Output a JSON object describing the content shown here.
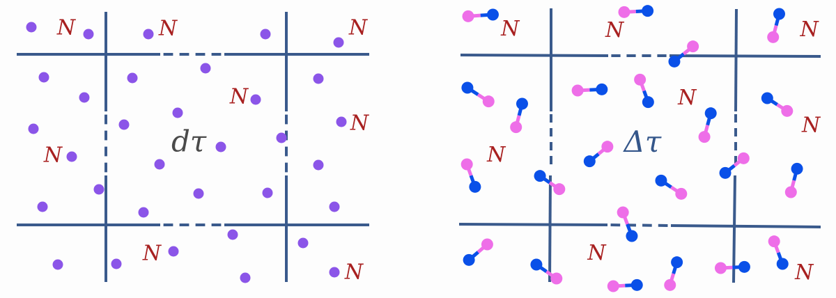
{
  "left_panel": {
    "cell_label": "N",
    "center_label": "dτ",
    "particle_type": "point",
    "particle_color": "#8b55e8"
  },
  "right_panel": {
    "cell_label": "N",
    "center_label": "Δτ",
    "particle_type": "diatomic-molecule",
    "atom_colors": [
      "#ee6ee8",
      "#0a50e8"
    ]
  },
  "colors": {
    "grid_line": "#3a5a8c",
    "cell_label": "#a82020",
    "left_center_label": "#4a4a4a",
    "right_center_label": "#34568a"
  }
}
